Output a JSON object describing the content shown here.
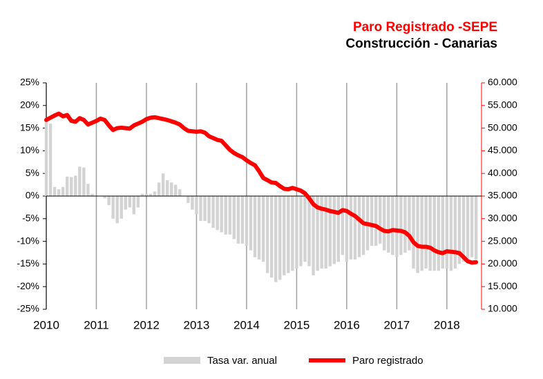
{
  "chart_data": {
    "type": "bar",
    "title": "Paro Registrado -SEPE",
    "subtitle": "Construcción - Canarias",
    "categories": [
      "2010",
      null,
      null,
      null,
      null,
      null,
      null,
      null,
      null,
      null,
      null,
      null,
      "2011",
      null,
      null,
      null,
      null,
      null,
      null,
      null,
      null,
      null,
      null,
      null,
      "2012",
      null,
      null,
      null,
      null,
      null,
      null,
      null,
      null,
      null,
      null,
      null,
      "2013",
      null,
      null,
      null,
      null,
      null,
      null,
      null,
      null,
      null,
      null,
      null,
      "2014",
      null,
      null,
      null,
      null,
      null,
      null,
      null,
      null,
      null,
      null,
      null,
      "2015",
      null,
      null,
      null,
      null,
      null,
      null,
      null,
      null,
      null,
      null,
      null,
      "2016",
      null,
      null,
      null,
      null,
      null,
      null,
      null,
      null,
      null,
      null,
      null,
      "2017",
      null,
      null,
      null,
      null,
      null,
      null,
      null,
      null,
      null,
      null,
      null,
      "2018",
      null,
      null,
      null,
      null,
      null,
      null,
      null
    ],
    "series": [
      {
        "name": "Tasa var. anual",
        "type": "bar",
        "color": "#d3d3d3",
        "axis": "y",
        "values": [
          17,
          16,
          2,
          1.5,
          2,
          4.3,
          4.2,
          4.5,
          6.5,
          6.3,
          2.7,
          0.5,
          0,
          0,
          -0.5,
          -2,
          -5,
          -6,
          -5,
          -3,
          -2.5,
          -4,
          -2.5,
          0.5,
          0.5,
          0.5,
          1,
          3,
          5,
          3.5,
          3,
          2.5,
          1.5,
          0,
          -1.5,
          -3,
          -4,
          -5.5,
          -5.5,
          -6,
          -7,
          -7.5,
          -8,
          -8.5,
          -8.5,
          -9.5,
          -10.5,
          -10.5,
          -11,
          -12,
          -13.5,
          -14,
          -14.5,
          -17,
          -18,
          -19,
          -18.5,
          -17.5,
          -17,
          -16.5,
          -16,
          -15.5,
          -14.5,
          -15.5,
          -17.5,
          -16.5,
          -16,
          -16,
          -15.5,
          -15,
          -14.5,
          -13,
          -14.5,
          -14,
          -14,
          -13.5,
          -13,
          -12,
          -11,
          -11,
          -10.5,
          -12,
          -12.5,
          -13,
          -13.5,
          -13,
          -12.5,
          -12,
          -16,
          -17,
          -16.5,
          -16,
          -16.5,
          -16.5,
          -16.5,
          -16,
          -16,
          -16.5,
          -16,
          -15,
          -14.5,
          -14,
          -13.5,
          -14
        ]
      },
      {
        "name": "Paro registrado",
        "type": "line",
        "color": "#ff0000",
        "axis": "y2",
        "values": [
          51800,
          52300,
          52800,
          53200,
          52600,
          52900,
          51600,
          51400,
          52200,
          51800,
          50800,
          51200,
          51600,
          52100,
          51800,
          50600,
          49600,
          50000,
          50100,
          50000,
          49900,
          50600,
          51000,
          51400,
          52000,
          52300,
          52400,
          52200,
          52000,
          51800,
          51500,
          51200,
          50800,
          50000,
          49400,
          49300,
          49200,
          49300,
          49000,
          48200,
          47800,
          47400,
          47200,
          46200,
          45200,
          44500,
          44000,
          43600,
          42900,
          42300,
          41800,
          40500,
          39000,
          38500,
          38000,
          37900,
          37200,
          36600,
          36500,
          36800,
          36500,
          36200,
          35600,
          34500,
          33200,
          32500,
          32200,
          32000,
          31700,
          31500,
          31300,
          31900,
          31700,
          31100,
          30600,
          29800,
          29000,
          28800,
          28600,
          28400,
          27800,
          27300,
          27200,
          27500,
          27400,
          27300,
          27000,
          26200,
          24800,
          24000,
          23800,
          23800,
          23600,
          23000,
          22600,
          22400,
          22800,
          22700,
          22600,
          22400,
          21500,
          20600,
          20300,
          20400
        ]
      }
    ],
    "ylim": [
      -25,
      25
    ],
    "yticks": [
      {
        "value": -25,
        "label": "-25%"
      },
      {
        "value": -20,
        "label": "-20%"
      },
      {
        "value": -15,
        "label": "-15%"
      },
      {
        "value": -10,
        "label": "-10%"
      },
      {
        "value": -5,
        "label": "-5%"
      },
      {
        "value": 0,
        "label": "0%"
      },
      {
        "value": 5,
        "label": "5%"
      },
      {
        "value": 10,
        "label": "10%"
      },
      {
        "value": 15,
        "label": "15%"
      },
      {
        "value": 20,
        "label": "20%"
      },
      {
        "value": 25,
        "label": "25%"
      }
    ],
    "y2lim": [
      10000,
      60000
    ],
    "y2ticks": [
      {
        "value": 10000,
        "label": "10.000"
      },
      {
        "value": 15000,
        "label": "15.000"
      },
      {
        "value": 20000,
        "label": "20.000"
      },
      {
        "value": 25000,
        "label": "25.000"
      },
      {
        "value": 30000,
        "label": "30.000"
      },
      {
        "value": 35000,
        "label": "35.000"
      },
      {
        "value": 40000,
        "label": "40.000"
      },
      {
        "value": 45000,
        "label": "45.000"
      },
      {
        "value": 50000,
        "label": "50.000"
      },
      {
        "value": 55000,
        "label": "55.000"
      },
      {
        "value": 60000,
        "label": "60.000"
      }
    ],
    "y2color": "#ff0000",
    "xgrid": true,
    "legend": "bottom"
  }
}
